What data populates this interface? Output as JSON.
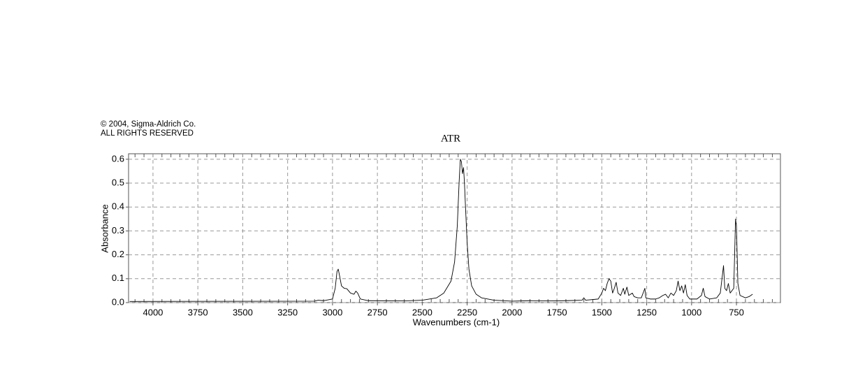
{
  "chart_data": {
    "type": "line",
    "title": "ATR",
    "annotations": [
      "© 2004, Sigma-Aldrich Co.",
      "ALL RIGHTS RESERVED"
    ],
    "x_label": "Wavenumbers (cm-1)",
    "y_label": "Absorbance",
    "color": "#000000",
    "grid": true,
    "xlim": [
      4136,
      505
    ],
    "ylim": [
      0,
      0.623
    ],
    "xticks": [
      4000,
      3750,
      3500,
      3250,
      3000,
      2750,
      2500,
      2250,
      2000,
      1750,
      1500,
      1250,
      1000,
      750
    ],
    "yticks": [
      {
        "value": 0,
        "label": "0.0"
      },
      0.1,
      0.2,
      0.3,
      0.4,
      0.5,
      0.6
    ],
    "x": [
      4130,
      3100,
      3080,
      3050,
      3000,
      2985,
      2975,
      2968,
      2960,
      2950,
      2935,
      2920,
      2900,
      2880,
      2870,
      2860,
      2845,
      2800,
      2600,
      2500,
      2420,
      2380,
      2340,
      2320,
      2305,
      2295,
      2288,
      2282,
      2276,
      2270,
      2265,
      2258,
      2250,
      2240,
      2225,
      2200,
      2170,
      2100,
      2000,
      1900,
      1800,
      1700,
      1610,
      1600,
      1590,
      1520,
      1500,
      1490,
      1480,
      1470,
      1460,
      1450,
      1440,
      1430,
      1420,
      1410,
      1395,
      1380,
      1372,
      1360,
      1350,
      1330,
      1320,
      1300,
      1280,
      1260,
      1255,
      1230,
      1200,
      1180,
      1160,
      1145,
      1130,
      1115,
      1100,
      1085,
      1075,
      1065,
      1055,
      1045,
      1035,
      1025,
      1010,
      970,
      945,
      935,
      925,
      900,
      860,
      840,
      822,
      815,
      805,
      795,
      785,
      765,
      755,
      750,
      742,
      730,
      700,
      680,
      660
    ],
    "values": [
      0.005,
      0.006,
      0.01,
      0.008,
      0.015,
      0.06,
      0.13,
      0.14,
      0.11,
      0.07,
      0.06,
      0.058,
      0.04,
      0.035,
      0.048,
      0.04,
      0.015,
      0.008,
      0.007,
      0.01,
      0.02,
      0.04,
      0.09,
      0.17,
      0.32,
      0.5,
      0.6,
      0.59,
      0.54,
      0.565,
      0.5,
      0.38,
      0.25,
      0.14,
      0.07,
      0.035,
      0.02,
      0.01,
      0.006,
      0.008,
      0.007,
      0.008,
      0.01,
      0.02,
      0.01,
      0.015,
      0.04,
      0.06,
      0.05,
      0.08,
      0.1,
      0.09,
      0.04,
      0.06,
      0.085,
      0.04,
      0.03,
      0.06,
      0.035,
      0.065,
      0.03,
      0.04,
      0.025,
      0.02,
      0.02,
      0.06,
      0.02,
      0.015,
      0.015,
      0.02,
      0.03,
      0.035,
      0.02,
      0.04,
      0.03,
      0.05,
      0.09,
      0.05,
      0.07,
      0.04,
      0.075,
      0.03,
      0.015,
      0.015,
      0.03,
      0.06,
      0.025,
      0.015,
      0.02,
      0.04,
      0.155,
      0.06,
      0.05,
      0.08,
      0.04,
      0.06,
      0.35,
      0.32,
      0.08,
      0.03,
      0.02,
      0.025,
      0.035
    ]
  }
}
